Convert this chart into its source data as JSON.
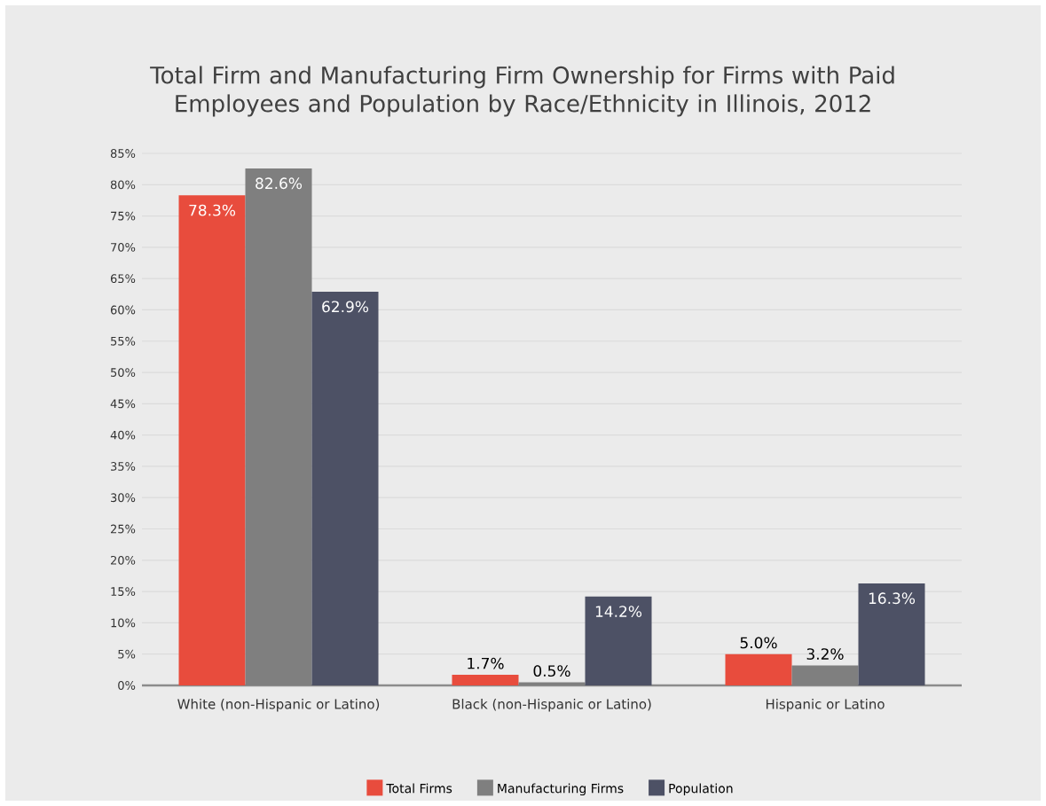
{
  "chart_data": {
    "type": "bar",
    "title": "Total Firm and Manufacturing Firm Ownership for Firms with Paid Employees and Population by Race/Ethnicity in Illinois, 2012",
    "categories": [
      "White (non-Hispanic or Latino)",
      "Black (non-Hispanic or Latino)",
      "Hispanic or Latino"
    ],
    "series": [
      {
        "name": "Total Firms",
        "color": "#e84c3d",
        "values": [
          78.3,
          1.7,
          5.0
        ],
        "value_labels": [
          "78.3%",
          "1.7%",
          "5.0%"
        ]
      },
      {
        "name": "Manufacturing Firms",
        "color": "#7f7f7f",
        "values": [
          82.6,
          0.5,
          3.2
        ],
        "value_labels": [
          "82.6%",
          "0.5%",
          "3.2%"
        ]
      },
      {
        "name": "Population",
        "color": "#4d5165",
        "values": [
          62.9,
          14.2,
          16.3
        ],
        "value_labels": [
          "62.9%",
          "14.2%",
          "16.3%"
        ]
      }
    ],
    "ylim": [
      0,
      85
    ],
    "yticks": [
      {
        "value": 0,
        "label": "0%"
      },
      {
        "value": 5,
        "label": "5%"
      },
      {
        "value": 10,
        "label": "10%"
      },
      {
        "value": 15,
        "label": "15%"
      },
      {
        "value": 20,
        "label": "20%"
      },
      {
        "value": 25,
        "label": "25%"
      },
      {
        "value": 30,
        "label": "30%"
      },
      {
        "value": 35,
        "label": "35%"
      },
      {
        "value": 40,
        "label": "40%"
      },
      {
        "value": 45,
        "label": "45%"
      },
      {
        "value": 50,
        "label": "50%"
      },
      {
        "value": 55,
        "label": "55%"
      },
      {
        "value": 60,
        "label": "60%"
      },
      {
        "value": 65,
        "label": "65%"
      },
      {
        "value": 70,
        "label": "70%"
      },
      {
        "value": 75,
        "label": "75%"
      },
      {
        "value": 80,
        "label": "80%"
      },
      {
        "value": 85,
        "label": "85%"
      }
    ],
    "grid": "y",
    "legend": "bottom"
  }
}
